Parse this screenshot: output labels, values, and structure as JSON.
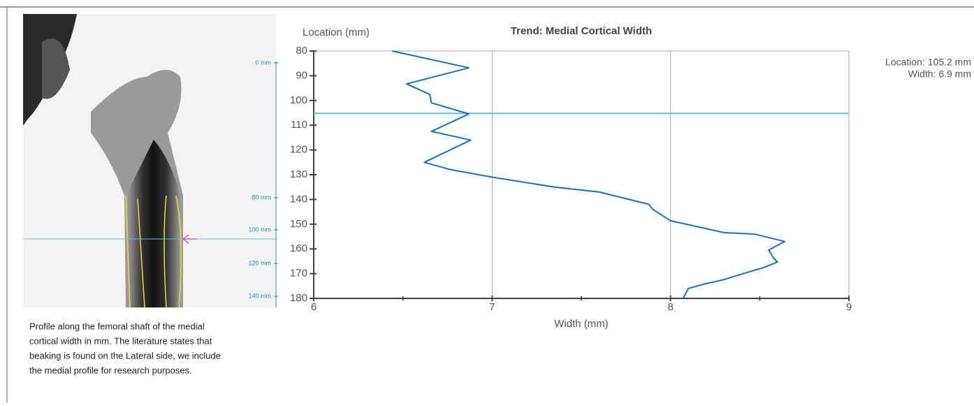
{
  "chart_data": {
    "type": "line",
    "title": "Trend: Medial Cortical Width",
    "x_label": "Width (mm)",
    "y_label": "Location (mm)",
    "xlim": [
      6,
      9
    ],
    "xticks": [
      6,
      7,
      8,
      9
    ],
    "xminor": [
      6.5,
      7.5,
      8.5
    ],
    "ylim": [
      80,
      180
    ],
    "yticks": [
      80,
      90,
      100,
      110,
      120,
      130,
      140,
      150,
      160,
      170,
      180
    ],
    "y_inverted": true,
    "grid": true,
    "series": [
      {
        "color": "#1f6fb5",
        "x": [
          6.44,
          6.87,
          6.52,
          6.65,
          6.66,
          6.87,
          6.66,
          6.88,
          6.62,
          6.77,
          7.0,
          7.35,
          7.6,
          7.88,
          7.9,
          8.0,
          8.3,
          8.47,
          8.64,
          8.55,
          8.58,
          8.6,
          8.52,
          8.43,
          8.3,
          8.2,
          8.1,
          8.07
        ],
        "values": [
          80,
          86.8,
          93.3,
          97.5,
          101,
          105.4,
          112.5,
          116,
          125,
          128,
          131,
          135,
          137,
          142,
          144,
          148.6,
          153.4,
          154,
          157,
          160.5,
          163.9,
          165.3,
          167.6,
          169.5,
          172.4,
          174,
          176,
          180
        ]
      }
    ],
    "marker_location": 105.2,
    "marker_color": "#5bc4d9",
    "marker_labels": [
      "Location: 105.2 mm",
      "Width: 6.9 mm"
    ]
  },
  "xray": {
    "scale_labels": [
      "0 mm",
      "80 mm",
      "100 mm",
      "120 mm",
      "140 mm"
    ]
  },
  "caption": [
    "Profile along the femoral shaft of the medial",
    "cortical width in mm. The literature states that",
    "beaking is found on the Lateral side, we include",
    "the medial profile for research purposes."
  ]
}
